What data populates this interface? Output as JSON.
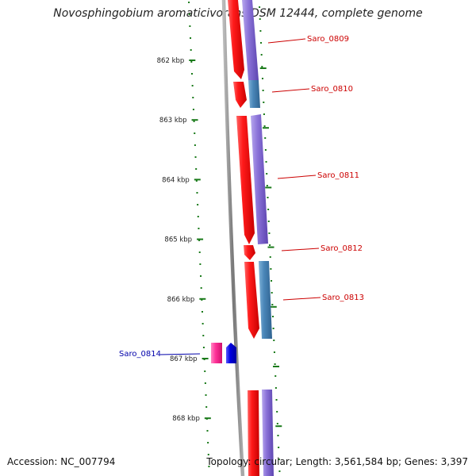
{
  "title": "Novosphingobium aromaticivorans DSM 12444, complete genome",
  "footer": {
    "accession": "Accession: NC_007794",
    "summary": "Topology: circular; Length: 3,561,584 bp; Genes: 3,397"
  },
  "scale": {
    "ticks": [
      "862 kbp",
      "863 kbp",
      "864 kbp",
      "865 kbp",
      "866 kbp",
      "867 kbp",
      "868 kbp"
    ]
  },
  "genes": [
    {
      "label": "Saro_0809",
      "color": "#cc0000"
    },
    {
      "label": "Saro_0810",
      "color": "#cc0000"
    },
    {
      "label": "Saro_0811",
      "color": "#cc0000"
    },
    {
      "label": "Saro_0812",
      "color": "#cc0000"
    },
    {
      "label": "Saro_0813",
      "color": "#cc0000"
    },
    {
      "label": "Saro_0814",
      "color": "#0000aa"
    }
  ],
  "colors": {
    "cds_forward": "#ff1a1a",
    "cds_reverse": "#0000e0",
    "gene_purple": "#8a72d8",
    "gene_steel": "#4a86b8",
    "gene_pink": "#ff3399",
    "backbone": "#888888",
    "tick_green": "#1a7a1a"
  }
}
